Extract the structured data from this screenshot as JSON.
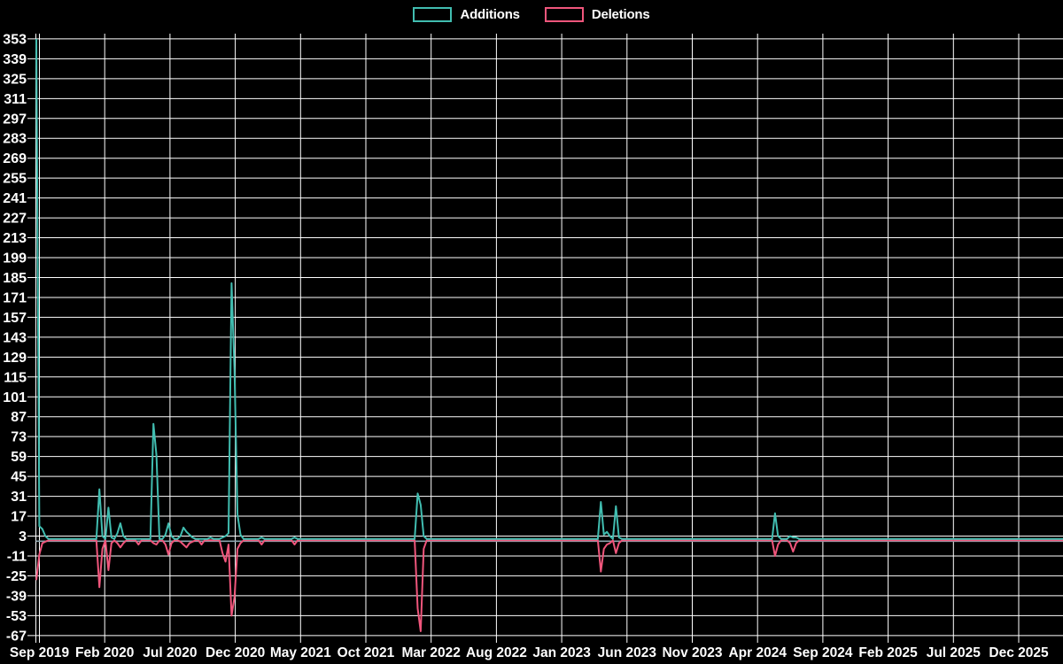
{
  "legend": {
    "additions_label": "Additions",
    "deletions_label": "Deletions"
  },
  "colors": {
    "background": "#000000",
    "grid": "#ffffff",
    "text": "#ffffff",
    "additions": "#41bdb0",
    "deletions": "#f0567c",
    "zero_line": "#8aa4ad"
  },
  "chart_data": {
    "type": "line",
    "title": "",
    "xlabel": "",
    "ylabel": "",
    "legend_position": "top-center",
    "grid": true,
    "ylim": [
      -67,
      353
    ],
    "y_tick_step": 14,
    "y_ticks": [
      353,
      339,
      325,
      311,
      297,
      283,
      269,
      255,
      241,
      227,
      213,
      199,
      185,
      171,
      157,
      143,
      129,
      115,
      101,
      87,
      73,
      59,
      45,
      31,
      17,
      3,
      -11,
      -25,
      -39,
      -53,
      -67
    ],
    "x_tick_labels": [
      "Sep 2019",
      "Feb 2020",
      "Jul 2020",
      "Dec 2020",
      "May 2021",
      "Oct 2021",
      "Mar 2022",
      "Aug 2022",
      "Jan 2023",
      "Jun 2023",
      "Nov 2023",
      "Apr 2024",
      "Sep 2024",
      "Feb 2025",
      "Jul 2025",
      "Dec 2025"
    ],
    "x_tick_interval_months": 5,
    "series_names": [
      "Additions",
      "Deletions"
    ],
    "week_unit": "weeks since Sep 2019 (first x tick)",
    "weeks_total": 343,
    "baseline": {
      "additions": 1,
      "deletions": 0
    },
    "spikes": [
      {
        "week": 0,
        "additions": 353,
        "deletions": -28
      },
      {
        "week": 1,
        "additions": 10,
        "deletions": -10
      },
      {
        "week": 2,
        "additions": 8,
        "deletions": -2
      },
      {
        "week": 3,
        "additions": 3,
        "deletions": -1
      },
      {
        "week": 21,
        "additions": 36,
        "deletions": -33
      },
      {
        "week": 22,
        "additions": 3,
        "deletions": -6
      },
      {
        "week": 24,
        "additions": 23,
        "deletions": -21
      },
      {
        "week": 25,
        "additions": 2,
        "deletions": -2
      },
      {
        "week": 27,
        "additions": 5,
        "deletions": -2
      },
      {
        "week": 28,
        "additions": 12,
        "deletions": -5
      },
      {
        "week": 29,
        "additions": 3,
        "deletions": -2
      },
      {
        "week": 34,
        "additions": 1,
        "deletions": -3
      },
      {
        "week": 39,
        "additions": 82,
        "deletions": -2
      },
      {
        "week": 40,
        "additions": 60,
        "deletions": -3
      },
      {
        "week": 43,
        "additions": 4,
        "deletions": -3
      },
      {
        "week": 44,
        "additions": 12,
        "deletions": -10
      },
      {
        "week": 45,
        "additions": 3,
        "deletions": -2
      },
      {
        "week": 48,
        "additions": 3,
        "deletions": -1
      },
      {
        "week": 49,
        "additions": 9,
        "deletions": -3
      },
      {
        "week": 50,
        "additions": 6,
        "deletions": -5
      },
      {
        "week": 51,
        "additions": 4,
        "deletions": -2
      },
      {
        "week": 52,
        "additions": 2,
        "deletions": -1
      },
      {
        "week": 55,
        "additions": 1,
        "deletions": -3
      },
      {
        "week": 58,
        "additions": 2,
        "deletions": 0
      },
      {
        "week": 62,
        "additions": 2,
        "deletions": -9
      },
      {
        "week": 63,
        "additions": 3,
        "deletions": -15
      },
      {
        "week": 64,
        "additions": 5,
        "deletions": -3
      },
      {
        "week": 65,
        "additions": 181,
        "deletions": -53
      },
      {
        "week": 66,
        "additions": 120,
        "deletions": -40
      },
      {
        "week": 67,
        "additions": 18,
        "deletions": -6
      },
      {
        "week": 68,
        "additions": 4,
        "deletions": -2
      },
      {
        "week": 75,
        "additions": 2,
        "deletions": -3
      },
      {
        "week": 86,
        "additions": 2,
        "deletions": -3
      },
      {
        "week": 127,
        "additions": 33,
        "deletions": -48
      },
      {
        "week": 128,
        "additions": 25,
        "deletions": -64
      },
      {
        "week": 129,
        "additions": 3,
        "deletions": -6
      },
      {
        "week": 188,
        "additions": 27,
        "deletions": -22
      },
      {
        "week": 189,
        "additions": 4,
        "deletions": -6
      },
      {
        "week": 190,
        "additions": 6,
        "deletions": -3
      },
      {
        "week": 191,
        "additions": 3,
        "deletions": -2
      },
      {
        "week": 193,
        "additions": 24,
        "deletions": -9
      },
      {
        "week": 194,
        "additions": 2,
        "deletions": -2
      },
      {
        "week": 246,
        "additions": 19,
        "deletions": -11
      },
      {
        "week": 247,
        "additions": 3,
        "deletions": -3
      },
      {
        "week": 251,
        "additions": 3,
        "deletions": -2
      },
      {
        "week": 252,
        "additions": 2,
        "deletions": -8
      },
      {
        "week": 253,
        "additions": 2,
        "deletions": -2
      }
    ]
  }
}
